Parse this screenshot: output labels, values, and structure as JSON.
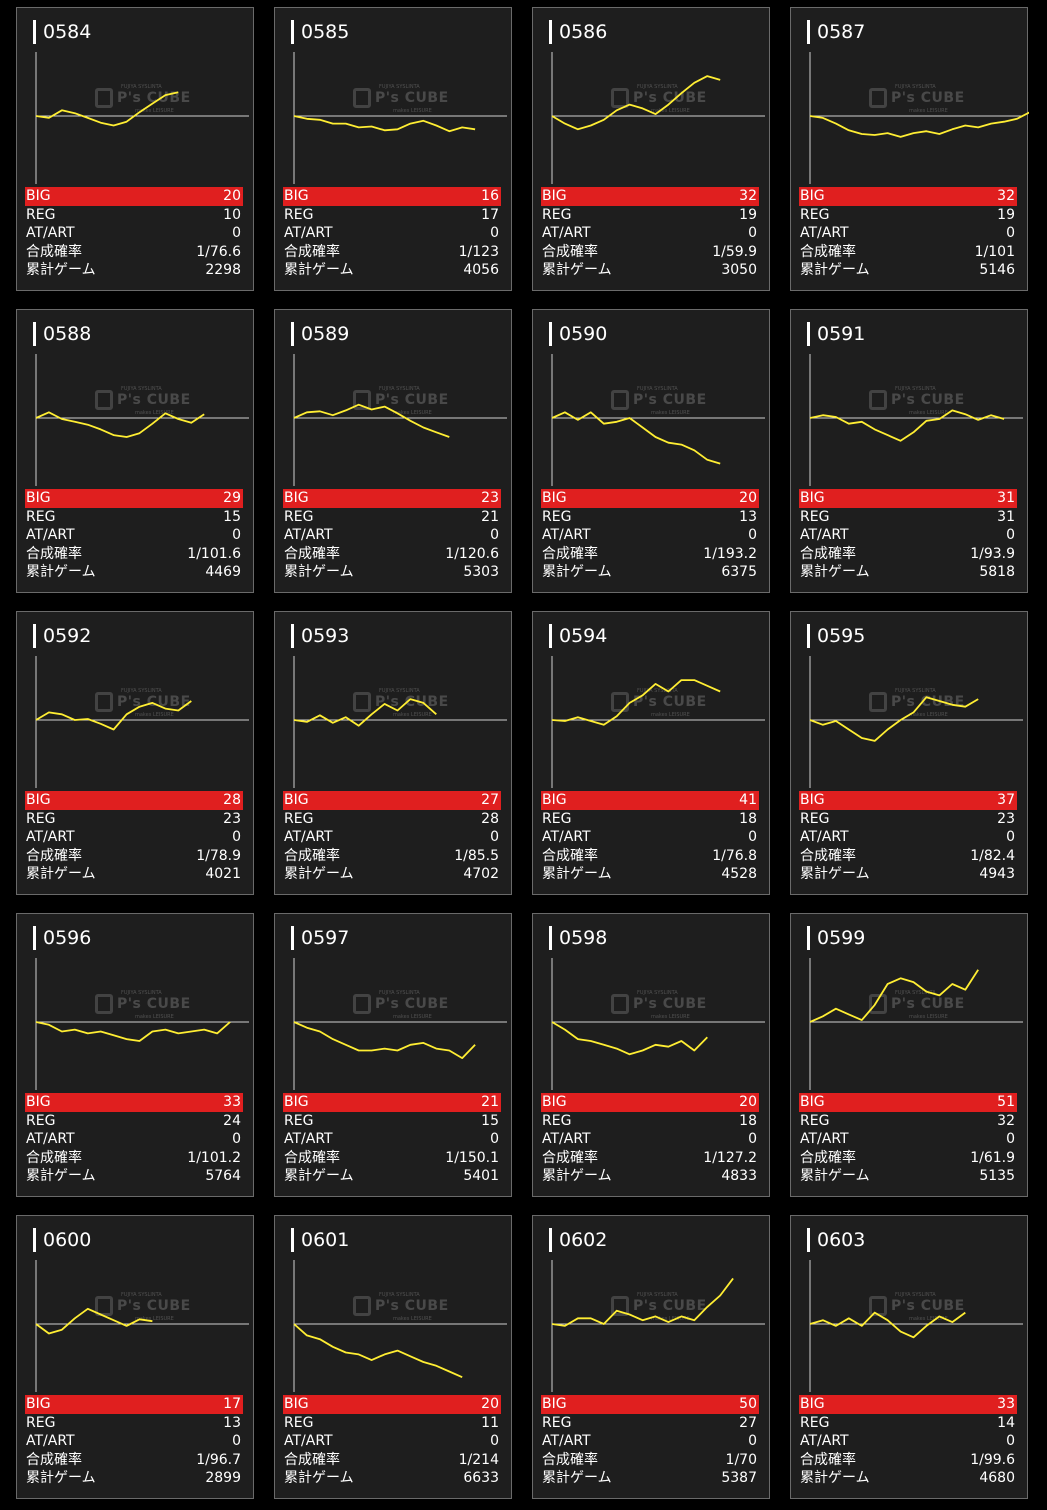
{
  "labels": {
    "big": "BIG",
    "reg": "REG",
    "at": "AT/ART",
    "prob": "合成確率",
    "games": "累計ゲーム"
  },
  "watermark": {
    "top": "FUJIYA SYSLINTA",
    "logo": "P's CUBE",
    "sub": "makes LEISURE"
  },
  "colors": {
    "line": "#ffee33",
    "big_bar": "#e01f1f",
    "card_bg": "#1e1e1e"
  },
  "machines": [
    {
      "id": "0584",
      "big": "20",
      "reg": "10",
      "at": "0",
      "prob": "1/76.6",
      "games": "2298",
      "trend": [
        0,
        -2,
        6,
        3,
        -2,
        -7,
        -10,
        -6,
        4,
        13,
        22,
        25
      ]
    },
    {
      "id": "0585",
      "big": "16",
      "reg": "17",
      "at": "0",
      "prob": "1/123",
      "games": "4056",
      "trend": [
        0,
        -3,
        -4,
        -8,
        -8,
        -12,
        -11,
        -15,
        -14,
        -8,
        -5,
        -10,
        -16,
        -12,
        -14
      ]
    },
    {
      "id": "0586",
      "big": "32",
      "reg": "19",
      "at": "0",
      "prob": "1/59.9",
      "games": "3050",
      "trend": [
        0,
        -8,
        -14,
        -10,
        -4,
        6,
        12,
        8,
        2,
        12,
        24,
        35,
        42,
        38
      ]
    },
    {
      "id": "0587",
      "big": "32",
      "reg": "19",
      "at": "0",
      "prob": "1/101",
      "games": "5146",
      "trend": [
        0,
        -2,
        -8,
        -15,
        -19,
        -20,
        -18,
        -22,
        -18,
        -16,
        -19,
        -14,
        -10,
        -12,
        -8,
        -6,
        -3,
        4
      ]
    },
    {
      "id": "0588",
      "big": "29",
      "reg": "15",
      "at": "0",
      "prob": "1/101.6",
      "games": "4469",
      "trend": [
        0,
        6,
        -1,
        -4,
        -7,
        -12,
        -18,
        -20,
        -16,
        -6,
        5,
        -1,
        -5,
        4
      ]
    },
    {
      "id": "0589",
      "big": "23",
      "reg": "21",
      "at": "0",
      "prob": "1/120.6",
      "games": "5303",
      "trend": [
        0,
        6,
        7,
        3,
        8,
        14,
        9,
        12,
        5,
        -3,
        -10,
        -15,
        -20
      ]
    },
    {
      "id": "0590",
      "big": "20",
      "reg": "13",
      "at": "0",
      "prob": "1/193.2",
      "games": "6375",
      "trend": [
        0,
        6,
        -2,
        6,
        -6,
        -4,
        0,
        -10,
        -20,
        -26,
        -28,
        -34,
        -44,
        -48
      ]
    },
    {
      "id": "0591",
      "big": "31",
      "reg": "31",
      "at": "0",
      "prob": "1/93.9",
      "games": "5818",
      "trend": [
        0,
        3,
        1,
        -6,
        -4,
        -12,
        -18,
        -24,
        -15,
        -3,
        -1,
        8,
        4,
        -2,
        3,
        -1
      ]
    },
    {
      "id": "0592",
      "big": "28",
      "reg": "23",
      "at": "0",
      "prob": "1/78.9",
      "games": "4021",
      "trend": [
        0,
        8,
        6,
        0,
        1,
        -4,
        -10,
        6,
        14,
        18,
        12,
        10,
        20
      ]
    },
    {
      "id": "0593",
      "big": "27",
      "reg": "28",
      "at": "0",
      "prob": "1/85.5",
      "games": "4702",
      "trend": [
        0,
        -2,
        5,
        -3,
        3,
        -6,
        6,
        17,
        10,
        22,
        18,
        6
      ]
    },
    {
      "id": "0594",
      "big": "41",
      "reg": "18",
      "at": "0",
      "prob": "1/76.8",
      "games": "4528",
      "trend": [
        0,
        -1,
        3,
        -1,
        -5,
        4,
        18,
        26,
        38,
        30,
        42,
        42,
        36,
        30
      ]
    },
    {
      "id": "0595",
      "big": "37",
      "reg": "23",
      "at": "0",
      "prob": "1/82.4",
      "games": "4943",
      "trend": [
        0,
        -5,
        -1,
        -10,
        -19,
        -22,
        -10,
        0,
        8,
        24,
        20,
        16,
        14,
        22
      ]
    },
    {
      "id": "0596",
      "big": "33",
      "reg": "24",
      "at": "0",
      "prob": "1/101.2",
      "games": "5764",
      "trend": [
        0,
        -3,
        -10,
        -8,
        -12,
        -10,
        -14,
        -18,
        -20,
        -10,
        -8,
        -12,
        -10,
        -8,
        -12,
        0
      ]
    },
    {
      "id": "0597",
      "big": "21",
      "reg": "15",
      "at": "0",
      "prob": "1/150.1",
      "games": "5401",
      "trend": [
        0,
        -6,
        -10,
        -18,
        -24,
        -30,
        -30,
        -28,
        -30,
        -24,
        -22,
        -28,
        -30,
        -38,
        -24
      ]
    },
    {
      "id": "0598",
      "big": "20",
      "reg": "18",
      "at": "0",
      "prob": "1/127.2",
      "games": "4833",
      "trend": [
        0,
        -8,
        -18,
        -20,
        -24,
        -28,
        -34,
        -30,
        -24,
        -26,
        -20,
        -30,
        -16
      ]
    },
    {
      "id": "0599",
      "big": "51",
      "reg": "32",
      "at": "0",
      "prob": "1/61.9",
      "games": "5135",
      "trend": [
        0,
        6,
        14,
        8,
        2,
        18,
        40,
        46,
        42,
        32,
        28,
        40,
        34,
        55
      ]
    },
    {
      "id": "0600",
      "big": "17",
      "reg": "13",
      "at": "0",
      "prob": "1/96.7",
      "games": "2899",
      "trend": [
        0,
        -10,
        -6,
        6,
        16,
        10,
        4,
        -2,
        5,
        3
      ]
    },
    {
      "id": "0601",
      "big": "20",
      "reg": "11",
      "at": "0",
      "prob": "1/214",
      "games": "6633",
      "trend": [
        0,
        -12,
        -16,
        -24,
        -30,
        -32,
        -38,
        -32,
        -28,
        -34,
        -40,
        -44,
        -50,
        -56
      ]
    },
    {
      "id": "0602",
      "big": "50",
      "reg": "27",
      "at": "0",
      "prob": "1/70",
      "games": "5387",
      "trend": [
        0,
        -2,
        6,
        6,
        0,
        14,
        10,
        4,
        8,
        2,
        8,
        4,
        18,
        30,
        48
      ]
    },
    {
      "id": "0603",
      "big": "33",
      "reg": "14",
      "at": "0",
      "prob": "1/99.6",
      "games": "4680",
      "trend": [
        0,
        4,
        -2,
        6,
        -2,
        12,
        4,
        -8,
        -14,
        -2,
        8,
        2,
        12
      ]
    }
  ]
}
